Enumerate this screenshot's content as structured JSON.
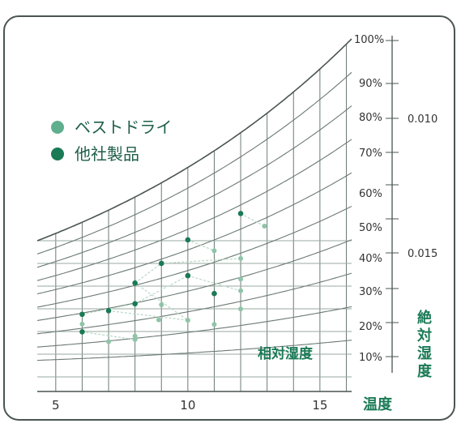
{
  "chart_data": {
    "type": "scatter",
    "title": "",
    "xlabel": "温度",
    "rh_label": "相対湿度",
    "ah_label": "絶対湿度",
    "x_ticks": [
      "5",
      "10",
      "15"
    ],
    "xlim": [
      4.3,
      16.2
    ],
    "rh_ticks": [
      "10%",
      "20%",
      "30%",
      "40%",
      "50%",
      "60%",
      "70%",
      "80%",
      "90%",
      "100%"
    ],
    "ah_ticks": [
      "0.010",
      "0.015"
    ],
    "grid": true,
    "legend_position": "top-left",
    "legend": [
      {
        "label": "ベストドライ",
        "color": "#5fae8e"
      },
      {
        "label": "他社製品",
        "color": "#1a7a55"
      }
    ],
    "series": [
      {
        "name": "ベストドライ",
        "color": "#8fc4a8",
        "points": [
          {
            "x": 6,
            "y_pos": 0.808
          },
          {
            "x": 7,
            "y_pos": 0.858
          },
          {
            "x": 8,
            "y_pos": 0.842
          },
          {
            "x": 8,
            "y_pos": 0.852
          },
          {
            "x": 8.9,
            "y_pos": 0.796
          },
          {
            "x": 9,
            "y_pos": 0.753
          },
          {
            "x": 10,
            "y_pos": 0.797
          },
          {
            "x": 11,
            "y_pos": 0.809
          },
          {
            "x": 11,
            "y_pos": 0.599
          },
          {
            "x": 12,
            "y_pos": 0.765
          },
          {
            "x": 12,
            "y_pos": 0.713
          },
          {
            "x": 12,
            "y_pos": 0.621
          },
          {
            "x": 12,
            "y_pos": 0.68
          },
          {
            "x": 12.9,
            "y_pos": 0.529
          }
        ]
      },
      {
        "name": "他社製品",
        "color": "#1a7a55",
        "points": [
          {
            "x": 6,
            "y_pos": 0.78
          },
          {
            "x": 6,
            "y_pos": 0.83
          },
          {
            "x": 7,
            "y_pos": 0.77
          },
          {
            "x": 8,
            "y_pos": 0.691
          },
          {
            "x": 8,
            "y_pos": 0.75
          },
          {
            "x": 9,
            "y_pos": 0.635
          },
          {
            "x": 10,
            "y_pos": 0.568
          },
          {
            "x": 10,
            "y_pos": 0.67
          },
          {
            "x": 11,
            "y_pos": 0.721
          },
          {
            "x": 12,
            "y_pos": 0.493
          }
        ]
      }
    ],
    "connections": [
      [
        [
          6,
          0.78
        ],
        [
          8,
          0.75
        ]
      ],
      [
        [
          8,
          0.75
        ],
        [
          10,
          0.67
        ]
      ],
      [
        [
          10,
          0.67
        ],
        [
          12,
          0.713
        ]
      ],
      [
        [
          6,
          0.83
        ],
        [
          8,
          0.852
        ]
      ],
      [
        [
          8,
          0.691
        ],
        [
          9,
          0.635
        ]
      ],
      [
        [
          9,
          0.635
        ],
        [
          12,
          0.621
        ]
      ],
      [
        [
          10,
          0.568
        ],
        [
          11,
          0.599
        ]
      ],
      [
        [
          12,
          0.493
        ],
        [
          12.9,
          0.529
        ]
      ],
      [
        [
          8,
          0.691
        ],
        [
          10,
          0.797
        ]
      ],
      [
        [
          7,
          0.77
        ],
        [
          10,
          0.797
        ]
      ]
    ]
  }
}
